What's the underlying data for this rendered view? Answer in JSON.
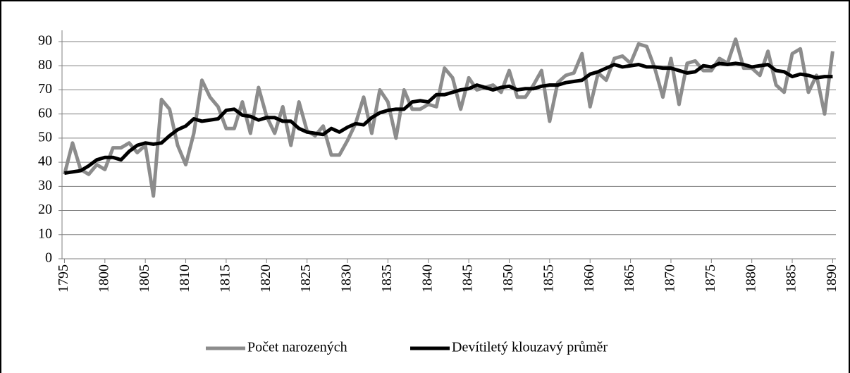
{
  "chart_data": {
    "type": "line",
    "x": [
      1795,
      1796,
      1797,
      1798,
      1799,
      1800,
      1801,
      1802,
      1803,
      1804,
      1805,
      1806,
      1807,
      1808,
      1809,
      1810,
      1811,
      1812,
      1813,
      1814,
      1815,
      1816,
      1817,
      1818,
      1819,
      1820,
      1821,
      1822,
      1823,
      1824,
      1825,
      1826,
      1827,
      1828,
      1829,
      1830,
      1831,
      1832,
      1833,
      1834,
      1835,
      1836,
      1837,
      1838,
      1839,
      1840,
      1841,
      1842,
      1843,
      1844,
      1845,
      1846,
      1847,
      1848,
      1849,
      1850,
      1851,
      1852,
      1853,
      1854,
      1855,
      1856,
      1857,
      1858,
      1859,
      1860,
      1861,
      1862,
      1863,
      1864,
      1865,
      1866,
      1867,
      1868,
      1869,
      1870,
      1871,
      1872,
      1873,
      1874,
      1875,
      1876,
      1877,
      1878,
      1879,
      1880,
      1881,
      1882,
      1883,
      1884,
      1885,
      1886,
      1887,
      1888,
      1889,
      1890
    ],
    "series": [
      {
        "name": "Počet narozených",
        "color": "#8c8c8c",
        "values": [
          35,
          48,
          37,
          35,
          39,
          37,
          46,
          46,
          48,
          44,
          47,
          26,
          66,
          62,
          47,
          39,
          52,
          74,
          67,
          63,
          54,
          54,
          65,
          52,
          71,
          59,
          52,
          63,
          47,
          65,
          53,
          51,
          55,
          43,
          43,
          49,
          56,
          67,
          52,
          70,
          65,
          50,
          70,
          62,
          62,
          64,
          63,
          79,
          75,
          62,
          75,
          70,
          71,
          72,
          69,
          78,
          67,
          67,
          72,
          78,
          57,
          73,
          76,
          77,
          85,
          63,
          77,
          74,
          83,
          84,
          81,
          89,
          88,
          79,
          67,
          83,
          64,
          81,
          82,
          78,
          78,
          83,
          81,
          91,
          79,
          79,
          76,
          86,
          72,
          69,
          85,
          87,
          69,
          76,
          60,
          86
        ]
      },
      {
        "name": "Devítiletý klouzavý průměr",
        "color": "#000000",
        "values": [
          35.5,
          36,
          36.5,
          38.5,
          41,
          42,
          42,
          41,
          44.5,
          47,
          48,
          47.5,
          48,
          51,
          53.5,
          55,
          58,
          57,
          57.5,
          58,
          61.5,
          62,
          59.5,
          59,
          57.5,
          58.5,
          58.5,
          57,
          57,
          54,
          52.5,
          52,
          51.5,
          54,
          52.5,
          54.5,
          56,
          55.5,
          58.5,
          60.5,
          61.5,
          62,
          62,
          65,
          65.5,
          65,
          68,
          68,
          69,
          70,
          70.5,
          72,
          71,
          70,
          71,
          71.5,
          70,
          70.5,
          70.5,
          71.5,
          72,
          72,
          73,
          73.5,
          74,
          76.5,
          77.5,
          79,
          80.5,
          79.5,
          80,
          80.5,
          79.5,
          79.5,
          79,
          79,
          78,
          77,
          77.5,
          80,
          79.5,
          81,
          80.5,
          81,
          80.5,
          79.5,
          80,
          80.5,
          78,
          77.5,
          75.5,
          76.5,
          76,
          75,
          75.5,
          75.5
        ]
      }
    ],
    "xlim": [
      1794.7,
      1890.4
    ],
    "xticks": [
      1795,
      1800,
      1805,
      1810,
      1815,
      1820,
      1825,
      1830,
      1835,
      1840,
      1845,
      1850,
      1855,
      1860,
      1865,
      1870,
      1875,
      1880,
      1885,
      1890
    ],
    "ylim": [
      0,
      90
    ],
    "yticks": [
      0,
      10,
      20,
      30,
      40,
      50,
      60,
      70,
      80,
      90
    ],
    "grid": true,
    "legend": "bottom"
  }
}
